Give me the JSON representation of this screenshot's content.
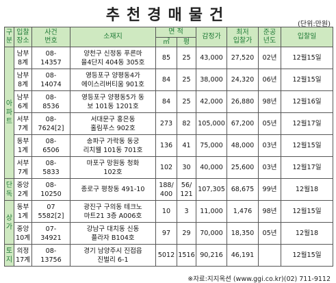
{
  "title": "추천경매물건",
  "unit": "(단위:만원)",
  "headers": {
    "category": "구분",
    "court": "입찰장소",
    "case_no": "사건번호",
    "address": "소재지",
    "area": "면 적",
    "area_m2": "㎡",
    "area_py": "평",
    "appraisal": "감정가",
    "min_bid": "최저입찰가",
    "built_year": "준공년도",
    "bid_date": "입찰일"
  },
  "categories": {
    "apartment": "아파트",
    "detached": "단독",
    "commercial": "상가",
    "land": "토지"
  },
  "rows": [
    {
      "court": [
        "남부",
        "8계"
      ],
      "case_no": [
        "08-",
        "14357"
      ],
      "address": [
        "양천구 신정동 푸른마",
        "을4단지 404동 305호"
      ],
      "m2": "85",
      "py": "25",
      "appraisal": "43,000",
      "min_bid": "27,520",
      "year": "02년",
      "date": "12월15일"
    },
    {
      "court": [
        "남부",
        "8계"
      ],
      "case_no": [
        "08-",
        "14074"
      ],
      "address": [
        "영등포구 양평동4가",
        "에이스리버티움 901호"
      ],
      "m2": "84",
      "py": "25",
      "appraisal": "38,000",
      "min_bid": "24,320",
      "year": "06년",
      "date": "12월15일"
    },
    {
      "court": [
        "남부",
        "6계"
      ],
      "case_no": [
        "08-",
        "8536"
      ],
      "address": [
        "영등포구 양평동5가 동",
        "보 101동 1201호"
      ],
      "m2": "84",
      "py": "25",
      "appraisal": "42,000",
      "min_bid": "26,880",
      "year": "98년",
      "date": "12월16일"
    },
    {
      "court": [
        "서부",
        "7계"
      ],
      "case_no": [
        "08-",
        "7624[2]"
      ],
      "address": [
        "서대문구 홍은동",
        "홀림푸스 902호"
      ],
      "m2": "273",
      "py": "82",
      "appraisal": "105,000",
      "min_bid": "67,200",
      "year": "05년",
      "date": "12월17일"
    },
    {
      "court": [
        "동부",
        "1계"
      ],
      "case_no": [
        "08-",
        "6506"
      ],
      "address": [
        "송파구 가락동 동궁",
        "리치웰 101동 701호"
      ],
      "m2": "136",
      "py": "41",
      "appraisal": "75,000",
      "min_bid": "48,000",
      "year": "03년",
      "date": "12월15일"
    },
    {
      "court": [
        "서부",
        "7계"
      ],
      "case_no": [
        "08-",
        "5833"
      ],
      "address": [
        "마포구 망원동 청화",
        "102호"
      ],
      "m2": "102",
      "py": "30",
      "appraisal": "40,000",
      "min_bid": "25,600",
      "year": "03년",
      "date": "12월17일"
    },
    {
      "court": [
        "중앙",
        "2계"
      ],
      "case_no": [
        "08-",
        "10250"
      ],
      "address": [
        "종로구 평창동 491-10"
      ],
      "m2": "188/400",
      "py": "56/121",
      "appraisal": "107,305",
      "min_bid": "68,675",
      "year": "99년",
      "date": "12월18"
    },
    {
      "court": [
        "동부",
        "1계"
      ],
      "case_no": [
        "07",
        "5582[2]"
      ],
      "address": [
        "광진구 구의동 테크노",
        "마트21 3층 A006호"
      ],
      "m2": "10",
      "py": "3",
      "appraisal": "11,000",
      "min_bid": "1,476",
      "year": "98년",
      "date": "12월15일"
    },
    {
      "court": [
        "중앙",
        "10계"
      ],
      "case_no": [
        "07-",
        "34921"
      ],
      "address": [
        "강남구 대치동 신동",
        "플라자 B104호"
      ],
      "m2": "97",
      "py": "29",
      "appraisal": "70,000",
      "min_bid": "18,350",
      "year": "05년",
      "date": "12월18"
    },
    {
      "court": [
        "의정",
        "17계"
      ],
      "case_no": [
        "08-",
        "13756"
      ],
      "address": [
        "경기 남양주시 진접읍",
        "진벌리 6-1"
      ],
      "m2": "5012",
      "py": "1516",
      "appraisal": "90,216",
      "min_bid": "46,191",
      "year": "",
      "date": "12월15일"
    }
  ],
  "source": "※자료:지지옥션 (www.ggi.co.kr)(02) 711-9112"
}
